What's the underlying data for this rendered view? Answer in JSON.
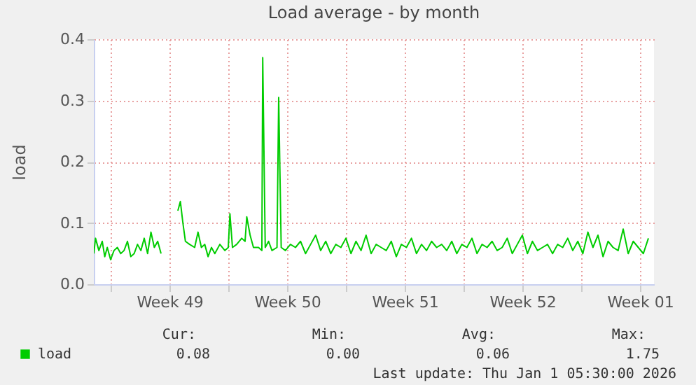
{
  "chart_data": {
    "type": "line",
    "title": "Load average - by month",
    "ylabel": "load",
    "x": [
      "2025-11-30T00:00",
      "2025-11-30T02:24",
      "2025-11-30T07:12",
      "2025-11-30T12:00",
      "2025-11-30T15:36",
      "2025-11-30T19:12",
      "2025-12-01T00:00",
      "2025-12-01T04:48",
      "2025-12-01T09:36",
      "2025-12-01T14:24",
      "2025-12-01T19:12",
      "2025-12-02T00:00",
      "2025-12-02T04:48",
      "2025-12-02T09:36",
      "2025-12-02T14:24",
      "2025-12-02T19:12",
      "2025-12-03T00:00",
      "2025-12-03T04:48",
      "2025-12-03T09:36",
      "2025-12-03T14:24",
      "2025-12-03T19:12",
      "2025-12-04T00:00",
      "2025-12-04T02:24",
      "2025-12-05T00:00",
      "2025-12-05T03:36",
      "2025-12-05T07:12",
      "2025-12-05T10:48",
      "2025-12-05T16:48",
      "2025-12-06T00:00",
      "2025-12-06T04:48",
      "2025-12-06T09:36",
      "2025-12-06T14:24",
      "2025-12-06T19:12",
      "2025-12-07T00:00",
      "2025-12-07T04:48",
      "2025-12-07T12:00",
      "2025-12-07T19:12",
      "2025-12-08T00:00",
      "2025-12-08T02:24",
      "2025-12-08T06:00",
      "2025-12-08T12:00",
      "2025-12-08T19:12",
      "2025-12-09T00:00",
      "2025-12-09T02:24",
      "2025-12-09T07:12",
      "2025-12-09T12:00",
      "2025-12-09T19:12",
      "2025-12-10T00:00",
      "2025-12-10T01:12",
      "2025-12-10T04:48",
      "2025-12-10T09:36",
      "2025-12-10T14:24",
      "2025-12-10T21:36",
      "2025-12-11T00:00",
      "2025-12-11T03:36",
      "2025-12-11T09:36",
      "2025-12-11T16:48",
      "2025-12-12T00:00",
      "2025-12-12T07:12",
      "2025-12-12T14:24",
      "2025-12-12T21:36",
      "2025-12-13T04:48",
      "2025-12-13T12:00",
      "2025-12-13T19:12",
      "2025-12-14T02:24",
      "2025-12-14T09:36",
      "2025-12-14T16:48",
      "2025-12-15T00:00",
      "2025-12-15T07:12",
      "2025-12-15T14:24",
      "2025-12-15T21:36",
      "2025-12-16T04:48",
      "2025-12-16T12:00",
      "2025-12-16T19:12",
      "2025-12-17T02:24",
      "2025-12-17T09:36",
      "2025-12-17T16:48",
      "2025-12-18T00:00",
      "2025-12-18T07:12",
      "2025-12-18T14:24",
      "2025-12-18T21:36",
      "2025-12-19T04:48",
      "2025-12-19T12:00",
      "2025-12-19T19:12",
      "2025-12-20T02:24",
      "2025-12-20T09:36",
      "2025-12-20T16:48",
      "2025-12-21T00:00",
      "2025-12-21T07:12",
      "2025-12-21T14:24",
      "2025-12-21T21:36",
      "2025-12-22T04:48",
      "2025-12-22T12:00",
      "2025-12-22T19:12",
      "2025-12-23T02:24",
      "2025-12-23T09:36",
      "2025-12-23T16:48",
      "2025-12-24T00:00",
      "2025-12-24T07:12",
      "2025-12-24T14:24",
      "2025-12-24T21:36",
      "2025-12-25T04:48",
      "2025-12-25T12:00",
      "2025-12-25T19:12",
      "2025-12-26T02:24",
      "2025-12-26T09:36",
      "2025-12-26T16:48",
      "2025-12-27T00:00",
      "2025-12-27T07:12",
      "2025-12-27T14:24",
      "2025-12-27T21:36",
      "2025-12-28T04:48",
      "2025-12-28T12:00",
      "2025-12-28T19:12",
      "2025-12-29T02:24",
      "2025-12-29T09:36",
      "2025-12-29T16:48",
      "2025-12-30T00:00",
      "2025-12-30T07:12",
      "2025-12-30T14:24",
      "2025-12-30T21:36",
      "2025-12-31T04:48",
      "2025-12-31T12:00",
      "2025-12-31T19:12",
      "2026-01-01T02:24",
      "2026-01-01T09:36",
      "2026-01-01T16:48",
      "2026-01-02T00:00"
    ],
    "series": [
      {
        "name": "load",
        "color": "#00cc00",
        "values": [
          0.05,
          0.075,
          0.055,
          0.07,
          0.045,
          0.06,
          0.04,
          0.055,
          0.06,
          0.05,
          0.055,
          0.07,
          0.045,
          0.05,
          0.065,
          0.055,
          0.075,
          0.05,
          0.085,
          0.06,
          0.07,
          0.05,
          null,
          0.12,
          0.135,
          0.1,
          0.07,
          0.065,
          0.06,
          0.085,
          0.06,
          0.065,
          0.045,
          0.06,
          0.05,
          0.065,
          0.055,
          0.06,
          0.115,
          0.06,
          0.065,
          0.075,
          0.07,
          0.11,
          0.08,
          0.06,
          0.06,
          0.055,
          0.37,
          0.06,
          0.07,
          0.055,
          0.06,
          0.305,
          0.06,
          0.055,
          0.065,
          0.06,
          0.07,
          0.05,
          0.065,
          0.08,
          0.055,
          0.07,
          0.05,
          0.065,
          0.06,
          0.075,
          0.05,
          0.07,
          0.055,
          0.08,
          0.05,
          0.065,
          0.06,
          0.055,
          0.07,
          0.045,
          0.065,
          0.06,
          0.075,
          0.05,
          0.065,
          0.055,
          0.07,
          0.06,
          0.065,
          0.055,
          0.07,
          0.05,
          0.065,
          0.06,
          0.075,
          0.05,
          0.065,
          0.06,
          0.07,
          0.055,
          0.06,
          0.075,
          0.05,
          0.065,
          0.08,
          0.05,
          0.07,
          0.055,
          0.06,
          0.065,
          0.05,
          0.065,
          0.06,
          0.075,
          0.055,
          0.07,
          0.05,
          0.085,
          0.06,
          0.08,
          0.045,
          0.07,
          0.06,
          0.055,
          0.09,
          0.05,
          0.07,
          0.06,
          0.05,
          0.075
        ]
      }
    ],
    "xlim": [
      "2025-11-30T00:00",
      "2026-01-02T08:00"
    ],
    "xticks": [
      {
        "value": "2025-12-01T00:00",
        "label": null
      },
      {
        "value": "2025-12-04T12:00",
        "label": "Week 49"
      },
      {
        "value": "2025-12-08T00:00",
        "label": null
      },
      {
        "value": "2025-12-11T12:00",
        "label": "Week 50"
      },
      {
        "value": "2025-12-15T00:00",
        "label": null
      },
      {
        "value": "2025-12-18T12:00",
        "label": "Week 51"
      },
      {
        "value": "2025-12-22T00:00",
        "label": null
      },
      {
        "value": "2025-12-25T12:00",
        "label": "Week 52"
      },
      {
        "value": "2025-12-29T00:00",
        "label": null
      },
      {
        "value": "2026-01-01T12:00",
        "label": "Week 01"
      }
    ],
    "ylim": [
      0,
      0.4
    ],
    "yticks": [
      {
        "value": 0,
        "label": "0.0"
      },
      {
        "value": 0.1,
        "label": "0.1"
      },
      {
        "value": 0.2,
        "label": "0.2"
      },
      {
        "value": 0.3,
        "label": "0.3"
      },
      {
        "value": 0.4,
        "label": "0.4"
      }
    ],
    "grid": true,
    "legend": "bottom",
    "line_style": "solid",
    "marker": "none",
    "annotations": [
      "Cur:",
      "0.08",
      "Min:",
      "0.00",
      "Avg:",
      "0.06",
      "Max:",
      "1.75",
      "Last update: Thu Jan  1 05:30:00 2026"
    ]
  }
}
